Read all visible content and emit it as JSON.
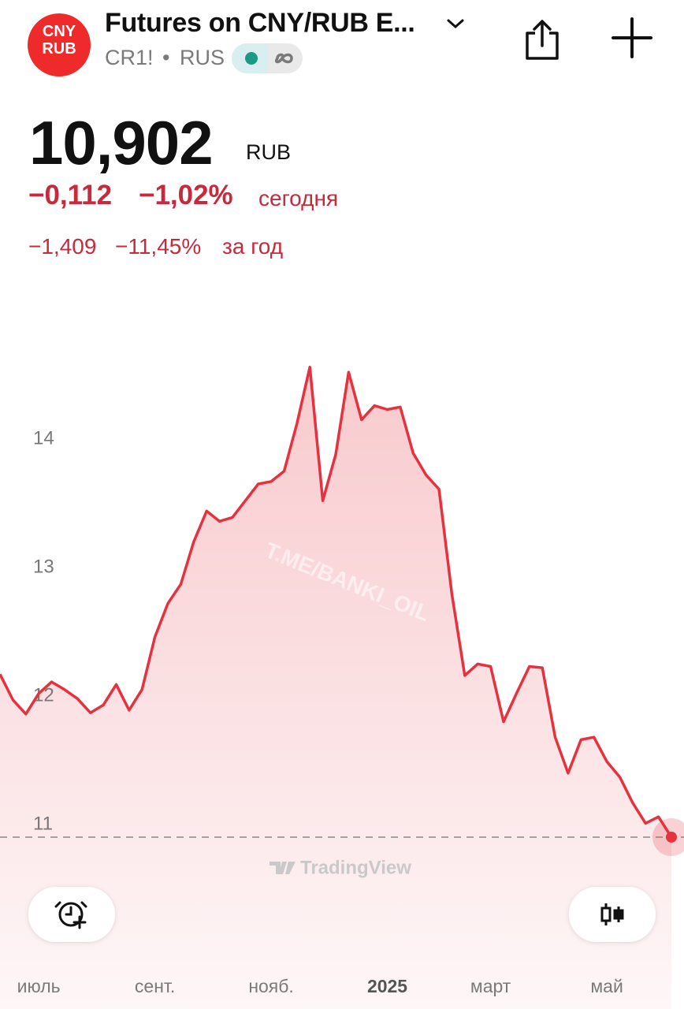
{
  "header": {
    "logo": [
      "CNY",
      "RUB"
    ],
    "title": "Futures on CNY/RUB E...",
    "ticker": "CR1!",
    "exchange": "RUS"
  },
  "quote": {
    "price": "10,902",
    "currency": "RUB",
    "change": "−0,112",
    "change_percent": "−1,02%",
    "change_period": "сегодня",
    "year_change": "−1,409",
    "year_change_percent": "−11,45%",
    "year_period": "за год"
  },
  "chart_data": {
    "type": "line",
    "color": "#e5323f",
    "categories": [
      null,
      null,
      null,
      "июль",
      null,
      null,
      null,
      null,
      null,
      null,
      null,
      null,
      "сент.",
      null,
      null,
      null,
      null,
      null,
      null,
      null,
      null,
      "нояб.",
      null,
      null,
      null,
      null,
      null,
      null,
      null,
      null,
      "2025",
      null,
      null,
      null,
      null,
      null,
      null,
      null,
      "март",
      null,
      null,
      null,
      null,
      null,
      null,
      null,
      null,
      "май",
      null,
      null,
      null,
      null,
      null
    ],
    "values": [
      12.17,
      11.97,
      11.86,
      12.02,
      12.11,
      12.05,
      11.98,
      11.87,
      11.93,
      12.09,
      11.89,
      12.05,
      12.46,
      12.72,
      12.87,
      13.2,
      13.44,
      13.36,
      13.39,
      13.52,
      13.65,
      13.67,
      13.75,
      14.12,
      14.56,
      13.52,
      13.88,
      14.52,
      14.15,
      14.26,
      14.23,
      14.25,
      13.89,
      13.72,
      13.61,
      12.79,
      12.16,
      12.25,
      12.23,
      11.8,
      12.02,
      12.23,
      12.22,
      11.68,
      11.4,
      11.66,
      11.68,
      11.49,
      11.37,
      11.17,
      11.01,
      11.06,
      10.902
    ],
    "ylim": [
      10.75,
      15
    ],
    "yticks": [
      11,
      12,
      13,
      14
    ],
    "watermark": "T.ME/BANKI_OIL",
    "brand": "TradingView"
  }
}
